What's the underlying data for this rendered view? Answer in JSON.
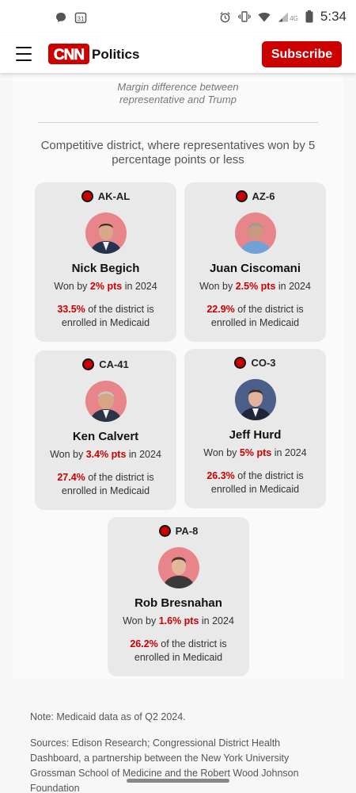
{
  "status_bar": {
    "calendar_day": "31",
    "network": "4G",
    "time": "5:34"
  },
  "header": {
    "brand": "CNN",
    "section": "Politics",
    "subscribe_label": "Subscribe"
  },
  "margin_caption": {
    "line1": "Margin difference between",
    "line2": "representative and Trump"
  },
  "heading": "Competitive district, where representatives won by 5 percentage points or less",
  "representatives": [
    {
      "district": "AK-AL",
      "name": "Nick Begich",
      "won_prefix": "Won by",
      "margin": "2% pts",
      "won_suffix": "in 2024",
      "medicaid_pct": "33.5%",
      "medicaid_text": "of the district is enrolled in Medicaid"
    },
    {
      "district": "AZ-6",
      "name": "Juan Ciscomani",
      "won_prefix": "Won by",
      "margin": "2.5% pts",
      "won_suffix": "in 2024",
      "medicaid_pct": "22.9%",
      "medicaid_text": "of the district is enrolled in Medicaid"
    },
    {
      "district": "CA-41",
      "name": "Ken Calvert",
      "won_prefix": "Won by",
      "margin": "3.4% pts",
      "won_suffix": "in 2024",
      "medicaid_pct": "27.4%",
      "medicaid_text": "of the district is enrolled in Medicaid"
    },
    {
      "district": "CO-3",
      "name": "Jeff Hurd",
      "won_prefix": "Won by",
      "margin": "5% pts",
      "won_suffix": "in 2024",
      "medicaid_pct": "26.3%",
      "medicaid_text": "of the district is enrolled in Medicaid"
    },
    {
      "district": "PA-8",
      "name": "Rob Bresnahan",
      "won_prefix": "Won by",
      "margin": "1.6% pts",
      "won_suffix": "in 2024",
      "medicaid_pct": "26.2%",
      "medicaid_text": "of the district is enrolled in Medicaid"
    }
  ],
  "note": "Note: Medicaid data as of Q2 2024.",
  "sources": "Sources: Edison Research; Congressional District Health Dashboard, a partnership between the New York University Grossman School of Medicine and the Robert Wood Johnson Foundation",
  "colors": {
    "accent": "#cc0000",
    "card_bg": "#e9e9e9",
    "avatar_bg": "#e8858a"
  },
  "icons": [
    "chat-icon",
    "calendar-icon",
    "alarm-icon",
    "vibrate-icon",
    "wifi-icon",
    "signal-icon",
    "battery-icon",
    "menu-icon"
  ]
}
